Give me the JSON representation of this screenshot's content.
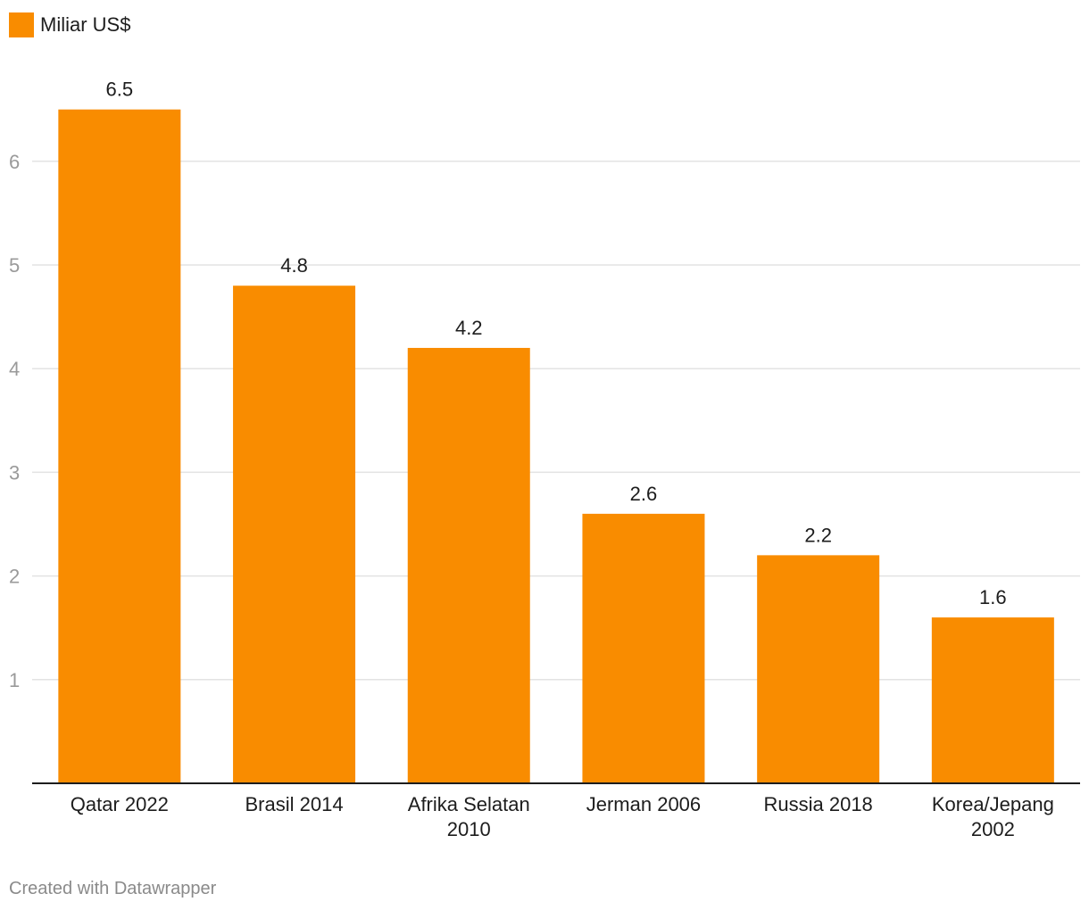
{
  "legend": {
    "label": "Miliar US$",
    "color": "#f98c00"
  },
  "credit": "Created with Datawrapper",
  "chart_data": {
    "type": "bar",
    "categories": [
      [
        "Qatar 2022"
      ],
      [
        "Brasil 2014"
      ],
      [
        "Afrika Selatan",
        "2010"
      ],
      [
        "Jerman 2006"
      ],
      [
        "Russia 2018"
      ],
      [
        "Korea/Jepang",
        "2002"
      ]
    ],
    "series": [
      {
        "name": "Miliar US$",
        "values": [
          6.5,
          4.8,
          4.2,
          2.6,
          2.2,
          1.6
        ]
      }
    ],
    "value_labels": [
      "6.5",
      "4.8",
      "4.2",
      "2.6",
      "2.2",
      "1.6"
    ],
    "yticks": [
      1,
      2,
      3,
      4,
      5,
      6
    ],
    "ylim": [
      0,
      6.5
    ],
    "grid": true,
    "legend_position": "top-left",
    "bar_color": "#f98c00"
  }
}
